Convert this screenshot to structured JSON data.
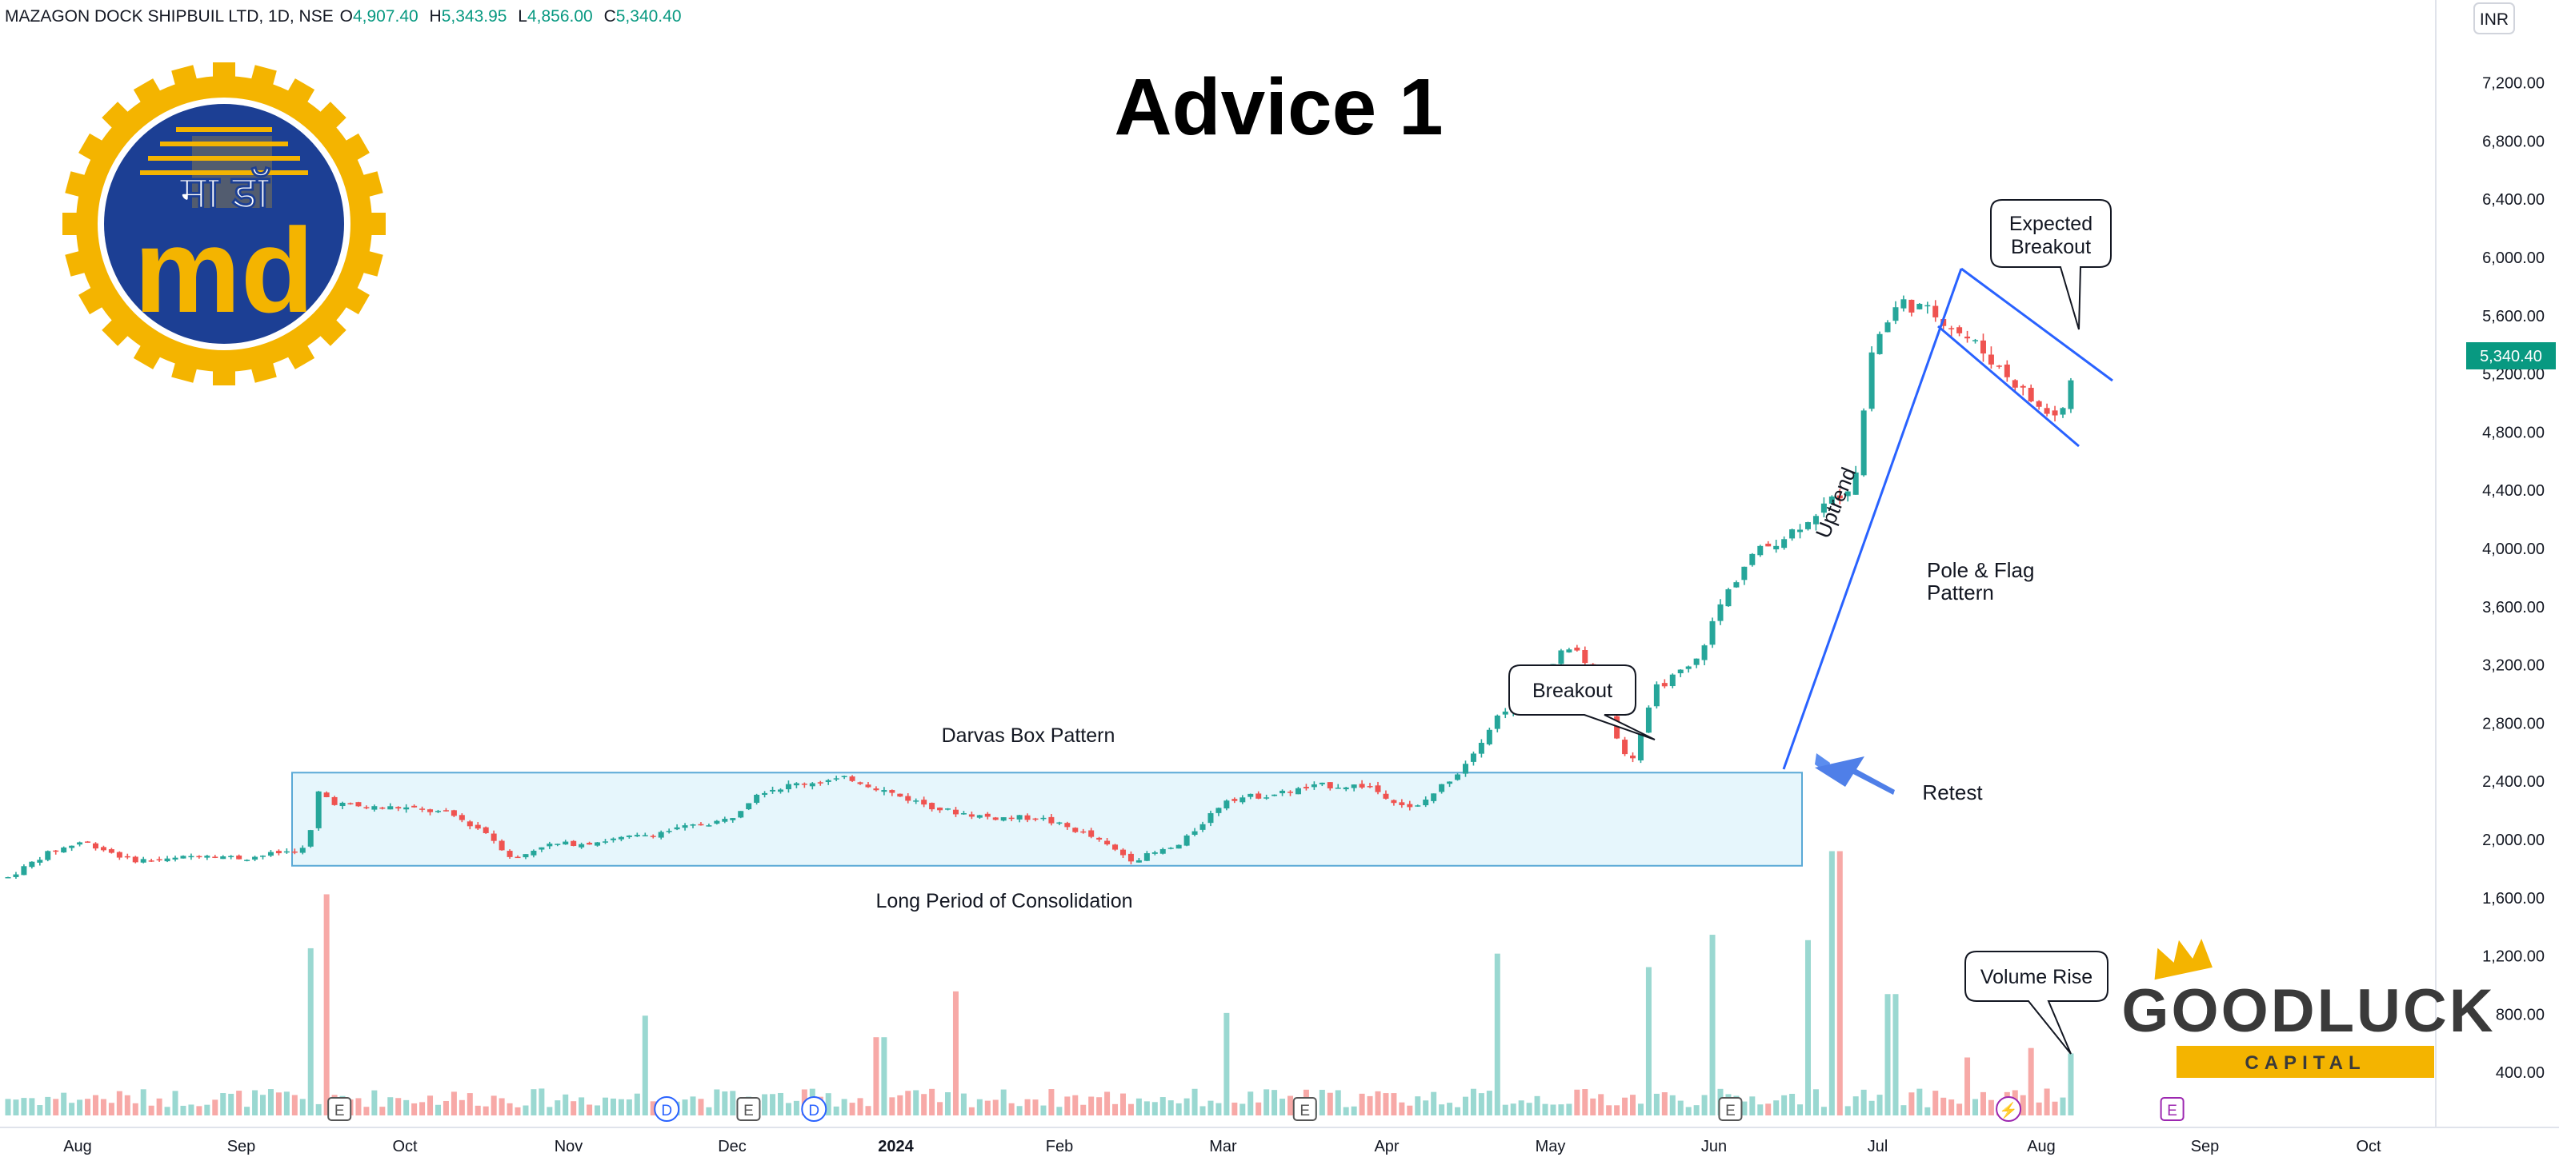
{
  "header": {
    "symbol_line": "MAZAGON DOCK SHIPBUIL LTD, 1D, NSE",
    "o_label": "O",
    "o_value": "4,907.40",
    "h_label": "H",
    "h_value": "5,343.95",
    "l_label": "L",
    "l_value": "4,856.00",
    "c_label": "C",
    "c_value": "5,340.40"
  },
  "title": "Advice 1",
  "currency": "INR",
  "price_tag": "5,340.40",
  "logo": {
    "text_top": "मा डॉ",
    "text_bottom": "md"
  },
  "brand": {
    "name": "GOODLUCK",
    "sub": "CAPITAL"
  },
  "annotations": {
    "darvas": "Darvas Box Pattern",
    "consolidation": "Long Period of Consolidation",
    "breakout": "Breakout",
    "retest": "Retest",
    "uptrend": "Uptrend",
    "pole_flag_1": "Pole & Flag",
    "pole_flag_2": "Pattern",
    "expected_1": "Expected",
    "expected_2": "Breakout",
    "volume_rise": "Volume Rise"
  },
  "event_markers": [
    {
      "type": "E",
      "color": "#555555",
      "month": 1.6
    },
    {
      "type": "D",
      "color": "#2962ff",
      "month": 3.6
    },
    {
      "type": "E",
      "color": "#555555",
      "month": 4.1
    },
    {
      "type": "D",
      "color": "#2962ff",
      "month": 4.5
    },
    {
      "type": "E",
      "color": "#555555",
      "month": 7.5
    },
    {
      "type": "E",
      "color": "#555555",
      "month": 10.1
    },
    {
      "type": "⚡",
      "color": "#9c27b0",
      "month": 11.8
    },
    {
      "type": "E",
      "color": "#9c27b0",
      "month": 12.8
    }
  ],
  "chart_data": {
    "type": "candlestick",
    "x_labels": [
      "Aug",
      "Sep",
      "Oct",
      "Nov",
      "Dec",
      "2024",
      "Feb",
      "Mar",
      "Apr",
      "May",
      "Jun",
      "Jul",
      "Aug",
      "Sep",
      "Oct"
    ],
    "y_ticks": [
      400,
      800,
      1200,
      1600,
      2000,
      2400,
      2800,
      3200,
      3600,
      4000,
      4400,
      4800,
      5200,
      5600,
      6000,
      6400,
      6800,
      7200
    ],
    "ylim": [
      200,
      7400
    ],
    "up_color": "#26a69a",
    "down_color": "#ef5350",
    "last_close": 5340.4,
    "price_path": [
      [
        0,
        1740
      ],
      [
        0.4,
        1900
      ],
      [
        0.8,
        1990
      ],
      [
        1.3,
        1860
      ],
      [
        1.7,
        1860
      ],
      [
        2.1,
        1900
      ],
      [
        2.5,
        1870
      ],
      [
        2.9,
        1910
      ],
      [
        3.2,
        1940
      ],
      [
        3.3,
        2330
      ],
      [
        3.5,
        2250
      ],
      [
        3.8,
        2220
      ],
      [
        4.2,
        2220
      ],
      [
        4.7,
        2180
      ],
      [
        5.1,
        2050
      ],
      [
        5.4,
        1860
      ],
      [
        5.7,
        1960
      ],
      [
        6.2,
        1980
      ],
      [
        6.7,
        2020
      ],
      [
        7.2,
        2080
      ],
      [
        7.7,
        2140
      ],
      [
        8.0,
        2330
      ],
      [
        8.5,
        2390
      ],
      [
        9.0,
        2420
      ],
      [
        9.5,
        2300
      ],
      [
        10.0,
        2200
      ],
      [
        10.5,
        2150
      ],
      [
        11.0,
        2150
      ],
      [
        11.5,
        2040
      ],
      [
        12.0,
        1860
      ],
      [
        12.5,
        1960
      ],
      [
        13.0,
        2280
      ],
      [
        13.5,
        2310
      ],
      [
        14.0,
        2370
      ],
      [
        14.5,
        2370
      ],
      [
        15.0,
        2200
      ],
      [
        15.5,
        2480
      ],
      [
        15.9,
        2850
      ],
      [
        16.3,
        3100
      ],
      [
        16.7,
        3350
      ],
      [
        17.0,
        3000
      ],
      [
        17.3,
        2500
      ],
      [
        17.6,
        3050
      ],
      [
        18.0,
        3200
      ],
      [
        18.3,
        3650
      ],
      [
        18.6,
        3950
      ],
      [
        19.0,
        4100
      ],
      [
        19.4,
        4300
      ],
      [
        19.7,
        4450
      ],
      [
        19.9,
        5400
      ],
      [
        20.2,
        5700
      ],
      [
        20.6,
        5600
      ],
      [
        21.0,
        5400
      ],
      [
        21.4,
        5150
      ],
      [
        21.7,
        4950
      ],
      [
        21.9,
        4900
      ],
      [
        22.1,
        5340
      ]
    ],
    "volume_spikes": [
      [
        3.2,
        1240
      ],
      [
        3.4,
        1640
      ],
      [
        6.8,
        740
      ],
      [
        9.3,
        580
      ],
      [
        10.1,
        920
      ],
      [
        13.0,
        760
      ],
      [
        15.9,
        1200
      ],
      [
        17.5,
        1100
      ],
      [
        18.2,
        1340
      ],
      [
        19.2,
        1300
      ],
      [
        19.5,
        1960
      ],
      [
        20.1,
        900
      ],
      [
        20.9,
        430
      ],
      [
        21.6,
        500
      ],
      [
        22.0,
        460
      ]
    ],
    "darvas_box": {
      "x0": 3.3,
      "x1": 20.6,
      "y0": 1820,
      "y1": 2460
    },
    "uptrend_line": [
      [
        18.4,
        2460
      ],
      [
        23.4,
        5960
      ]
    ],
    "flag_upper": [
      [
        23.4,
        5960
      ],
      [
        25.7,
        5160
      ]
    ],
    "flag_lower": [
      [
        23.1,
        5430
      ],
      [
        24.8,
        4700
      ]
    ]
  }
}
